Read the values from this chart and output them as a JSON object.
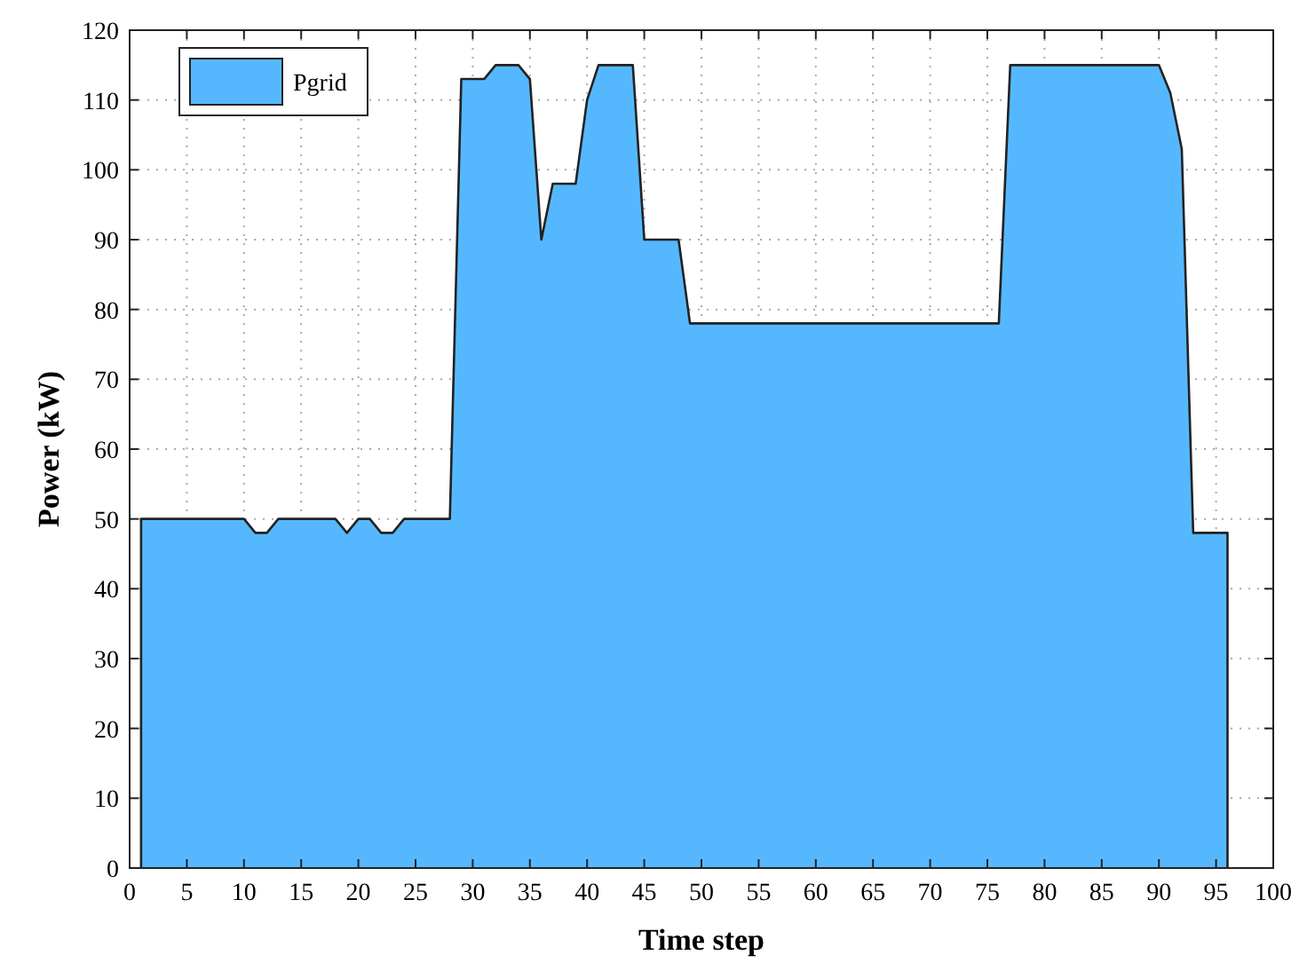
{
  "chart_data": {
    "type": "area",
    "xlabel": "Time step",
    "ylabel": "Power (kW)",
    "x": [
      1,
      2,
      3,
      4,
      5,
      6,
      7,
      8,
      9,
      10,
      11,
      12,
      13,
      14,
      15,
      16,
      17,
      18,
      19,
      20,
      21,
      22,
      23,
      24,
      25,
      26,
      27,
      28,
      29,
      30,
      31,
      32,
      33,
      34,
      35,
      36,
      37,
      38,
      39,
      40,
      41,
      42,
      43,
      44,
      45,
      46,
      47,
      48,
      49,
      50,
      51,
      52,
      53,
      54,
      55,
      56,
      57,
      58,
      59,
      60,
      61,
      62,
      63,
      64,
      65,
      66,
      67,
      68,
      69,
      70,
      71,
      72,
      73,
      74,
      75,
      76,
      77,
      78,
      79,
      80,
      81,
      82,
      83,
      84,
      85,
      86,
      87,
      88,
      89,
      90,
      91,
      92,
      93,
      94,
      95,
      96
    ],
    "series": [
      {
        "name": "Pgrid",
        "color": "#55b8ff",
        "values": [
          50,
          50,
          50,
          50,
          50,
          50,
          50,
          50,
          50,
          50,
          48,
          48,
          50,
          50,
          50,
          50,
          50,
          50,
          48,
          50,
          50,
          48,
          48,
          50,
          50,
          50,
          50,
          50,
          113,
          113,
          113,
          115,
          115,
          115,
          113,
          90,
          98,
          98,
          98,
          110,
          115,
          115,
          115,
          115,
          90,
          90,
          90,
          90,
          78,
          78,
          78,
          78,
          78,
          78,
          78,
          78,
          78,
          78,
          78,
          78,
          78,
          78,
          78,
          78,
          78,
          78,
          78,
          78,
          78,
          78,
          78,
          78,
          78,
          78,
          78,
          78,
          115,
          115,
          115,
          115,
          115,
          115,
          115,
          115,
          115,
          115,
          115,
          115,
          115,
          115,
          111,
          103,
          48,
          48,
          48,
          48
        ]
      }
    ],
    "xlim": [
      0,
      100
    ],
    "xticks": [
      0,
      5,
      10,
      15,
      20,
      25,
      30,
      35,
      40,
      45,
      50,
      55,
      60,
      65,
      70,
      75,
      80,
      85,
      90,
      95,
      100
    ],
    "ylim": [
      0,
      120
    ],
    "yticks": [
      0,
      10,
      20,
      30,
      40,
      50,
      60,
      70,
      80,
      90,
      100,
      110,
      120
    ],
    "grid": true,
    "legend": "top left",
    "line_style": "solid"
  }
}
